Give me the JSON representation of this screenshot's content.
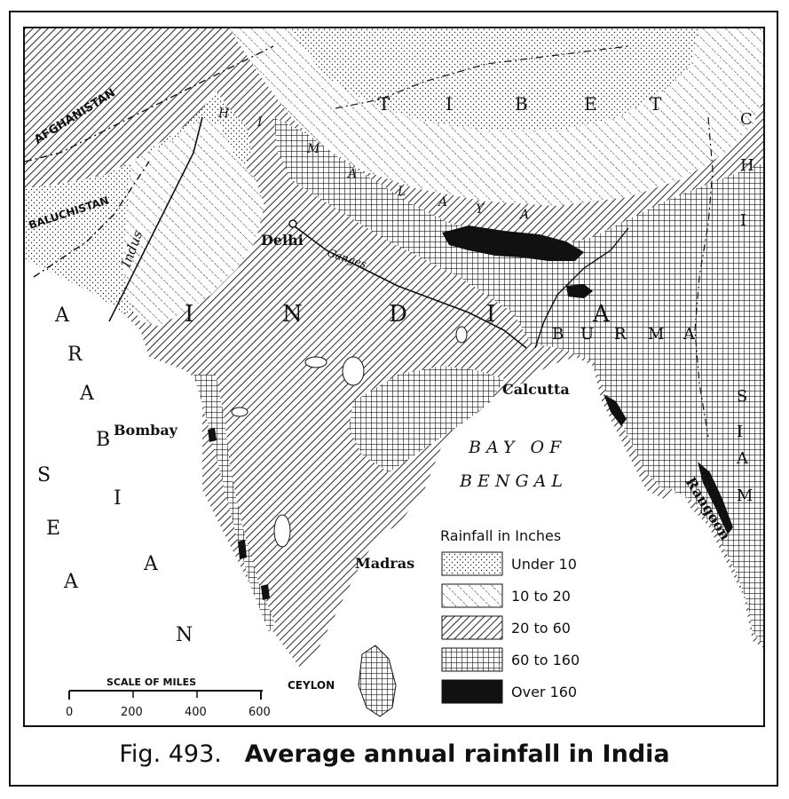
{
  "caption": {
    "fig_number": "Fig. 493.",
    "title": "Average annual rainfall in India"
  },
  "legend": {
    "title": "Rainfall in Inches",
    "items": [
      {
        "label": "Under 10",
        "pattern": "dots"
      },
      {
        "label": "10 to 20",
        "pattern": "light-hatch"
      },
      {
        "label": "20 to 60",
        "pattern": "dense-hatch"
      },
      {
        "label": "60 to 160",
        "pattern": "crosshatch"
      },
      {
        "label": "Over 160",
        "pattern": "solid-black"
      }
    ]
  },
  "scale": {
    "title": "SCALE OF MILES",
    "ticks": [
      "0",
      "200",
      "400",
      "600"
    ]
  },
  "places": {
    "delhi": "Delhi",
    "bombay": "Bombay",
    "calcutta": "Calcutta",
    "madras": "Madras",
    "rangoon": "Rangoon",
    "ceylon": "CEYLON",
    "baluchistan": "BALUCHISTAN",
    "afghanistan": "AFGHANISTAN",
    "indus": "Indus",
    "ganges": "Ganges"
  },
  "spaced_labels": {
    "tibet": [
      "T",
      "I",
      "B",
      "E",
      "T"
    ],
    "india": [
      "I",
      "N",
      "D",
      "I",
      "A"
    ],
    "burma": [
      "B",
      "U",
      "R",
      "M",
      "A"
    ],
    "siam": [
      "S",
      "I",
      "A",
      "M"
    ],
    "china": [
      "C",
      "H",
      "I"
    ],
    "arabian_sea": [
      "A",
      "R",
      "A",
      "B",
      "I",
      "A",
      "N"
    ],
    "sea": [
      "S",
      "E",
      "A"
    ],
    "himalaya": [
      "H",
      "I",
      "M",
      "A",
      "L",
      "A",
      "Y",
      "A"
    ]
  },
  "bay_of_bengal": {
    "line1": "BAY OF",
    "line2": "BENGAL"
  },
  "colors": {
    "ink": "#111111",
    "paper": "#ffffff"
  }
}
